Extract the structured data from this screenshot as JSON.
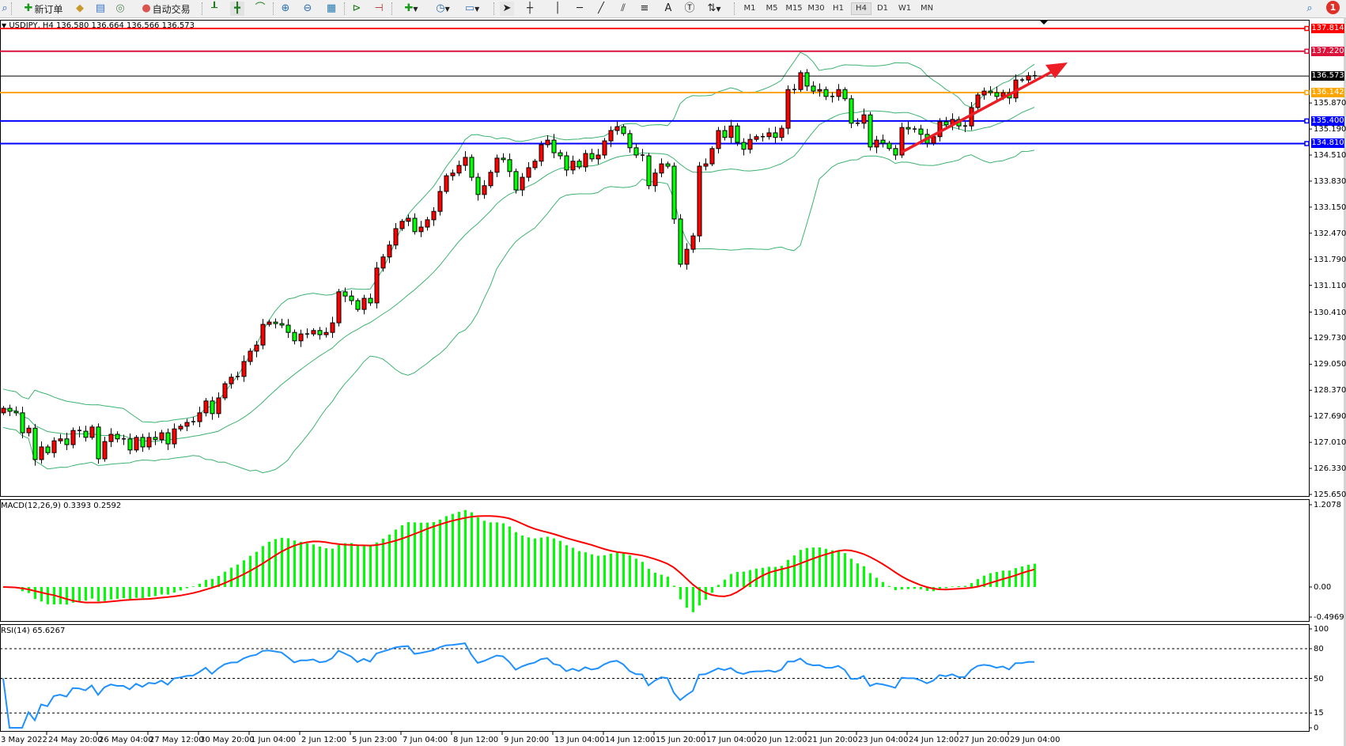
{
  "toolbar": {
    "new_order_label": "新订单",
    "auto_trading_label": "自动交易",
    "periods": [
      "M1",
      "M5",
      "M15",
      "M30",
      "H1",
      "H4",
      "D1",
      "W1",
      "MN"
    ],
    "active_period": "H4",
    "notification_count": "1"
  },
  "chart_header": "USDJPY, H4  136.580 136.664 136.566 136.573",
  "chart_data": [
    {
      "type": "candlestick",
      "symbol": "USDJPY",
      "timeframe": "H4",
      "last_bar": {
        "open": 136.58,
        "high": 136.664,
        "low": 136.566,
        "close": 136.573
      },
      "up_color": "#ff0000",
      "down_color": "#00ff00",
      "first_open": 127.78,
      "close": [
        127.9,
        127.82,
        127.78,
        127.26,
        127.38,
        126.56,
        126.89,
        126.74,
        127.05,
        127.1,
        126.95,
        127.32,
        127.3,
        127.14,
        127.41,
        126.58,
        127.03,
        127.22,
        127.1,
        127.1,
        126.81,
        127.14,
        126.89,
        127.14,
        127.08,
        127.26,
        126.97,
        127.36,
        127.43,
        127.53,
        127.55,
        127.78,
        128.09,
        127.76,
        128.17,
        128.54,
        128.71,
        128.73,
        129.12,
        129.39,
        129.55,
        130.09,
        130.15,
        130.11,
        130.07,
        129.88,
        129.66,
        129.84,
        129.84,
        129.93,
        129.82,
        129.88,
        130.13,
        130.94,
        130.83,
        130.71,
        130.48,
        130.77,
        130.65,
        131.56,
        131.85,
        132.16,
        132.59,
        132.78,
        132.86,
        132.51,
        132.63,
        132.82,
        133.04,
        133.56,
        133.97,
        134.04,
        134.24,
        134.45,
        133.93,
        133.48,
        133.71,
        134.06,
        134.43,
        134.39,
        134.08,
        133.6,
        133.93,
        134.18,
        134.35,
        134.78,
        134.9,
        134.57,
        134.49,
        134.12,
        134.35,
        134.2,
        134.55,
        134.41,
        134.51,
        134.88,
        135.15,
        135.25,
        135.07,
        134.7,
        134.51,
        134.49,
        133.71,
        134.04,
        134.28,
        134.22,
        132.84,
        131.66,
        132.05,
        132.4,
        134.22,
        134.28,
        134.68,
        135.15,
        134.97,
        135.27,
        134.84,
        134.66,
        134.92,
        134.99,
        134.99,
        135.09,
        134.97,
        135.21,
        136.22,
        136.22,
        136.66,
        136.31,
        136.18,
        136.22,
        136.04,
        136.04,
        136.22,
        135.98,
        135.34,
        135.34,
        135.56,
        134.72,
        134.9,
        134.82,
        134.68,
        134.51,
        135.23,
        135.19,
        135.19,
        135.05,
        134.82,
        134.99,
        135.38,
        135.3,
        135.44,
        135.27,
        135.27,
        135.75,
        136.08,
        136.18,
        136.14,
        136.04,
        136.14,
        136.0,
        136.47,
        136.47,
        136.58,
        136.573
      ],
      "ylim": [
        125.65,
        137.93
      ],
      "price_ticks": [
        "135.870",
        "135.190",
        "134.510",
        "133.830",
        "133.150",
        "132.470",
        "131.790",
        "131.110",
        "130.410",
        "129.730",
        "129.050",
        "128.370",
        "127.690",
        "127.010",
        "126.330",
        "125.650"
      ],
      "horizontal_lines": [
        {
          "price": 137.814,
          "label": "137.814",
          "color": "#ff0000"
        },
        {
          "price": 137.22,
          "label": "137.220",
          "color": "#dc143c"
        },
        {
          "price": 136.573,
          "label": "136.573",
          "color": "#000000"
        },
        {
          "price": 136.142,
          "label": "136.142",
          "color": "#ffa500"
        },
        {
          "price": 135.4,
          "label": "135.400",
          "color": "#0000ff"
        },
        {
          "price": 134.81,
          "label": "134.810",
          "color": "#0000ff"
        }
      ],
      "band_color": "#3cb371",
      "trend_arrow_color": "#ee1c24",
      "x_tick_labels": [
        "3 May 2022",
        "24 May 20:00",
        "26 May 04:00",
        "27 May 12:00",
        "30 May 20:00",
        "1 Jun 04:00",
        "2 Jun 12:00",
        "5 Jun 23:00",
        "7 Jun 04:00",
        "8 Jun 12:00",
        "9 Jun 20:00",
        "13 Jun 04:00",
        "14 Jun 12:00",
        "15 Jun 20:00",
        "17 Jun 04:00",
        "20 Jun 12:00",
        "21 Jun 20:00",
        "23 Jun 04:00",
        "24 Jun 12:00",
        "27 Jun 20:00",
        "29 Jun 04:00"
      ]
    },
    {
      "type": "bar",
      "title": "MACD(12,26,9) 0.3393 0.2592",
      "ylim": [
        -0.4969,
        1.2078
      ],
      "ticks": [
        "1.2078",
        "0.00",
        "-0.4969"
      ],
      "histogram_color": "#00ff00",
      "signal_color": "#ff0000"
    },
    {
      "type": "line",
      "title": "RSI(14) 65.6267",
      "ylim": [
        0,
        100
      ],
      "ticks": [
        "100",
        "80",
        "50",
        "15",
        "0"
      ],
      "levels": [
        80,
        50,
        15
      ],
      "line_color": "#1e90ff"
    }
  ]
}
